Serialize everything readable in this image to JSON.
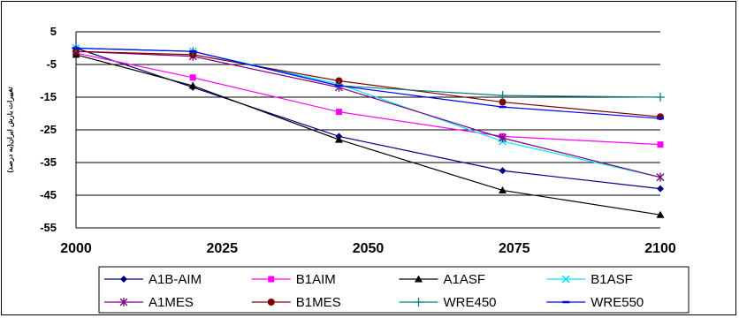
{
  "chart_data": {
    "type": "line",
    "title": "",
    "xlabel": "",
    "ylabel": "تغییرات بارش ایران(به درصد)",
    "x": [
      2000,
      2020,
      2045,
      2073,
      2100
    ],
    "xticks": [
      "2000",
      "2025",
      "2050",
      "2075",
      "2100"
    ],
    "yticks": [
      "5",
      "-5",
      "-15",
      "-25",
      "-35",
      "-45",
      "-55"
    ],
    "ylim": [
      -55,
      5
    ],
    "grid": "horizontal",
    "legend_position": "bottom",
    "series": [
      {
        "name": "A1B-AIM",
        "color": "#000080",
        "marker": "diamond",
        "values": [
          0,
          -12,
          -27,
          -37.5,
          -43
        ]
      },
      {
        "name": "B1AIM",
        "color": "#ff00ff",
        "marker": "square",
        "values": [
          -1.5,
          -9,
          -19.5,
          -27,
          -29.5
        ]
      },
      {
        "name": "A1ASF",
        "color": "#000000",
        "marker": "triangle",
        "values": [
          -2,
          -11.5,
          -28,
          -43.5,
          -51
        ]
      },
      {
        "name": "B1ASF",
        "color": "#00e5ff",
        "marker": "x",
        "values": [
          0,
          -1,
          -11,
          -28.5,
          -39.5
        ]
      },
      {
        "name": "A1MES",
        "color": "#800080",
        "marker": "star",
        "values": [
          -1,
          -2.5,
          -12,
          -27.5,
          -39.5
        ]
      },
      {
        "name": "B1MES",
        "color": "#800000",
        "marker": "circle",
        "values": [
          -1,
          -2,
          -10,
          -16.5,
          -21
        ]
      },
      {
        "name": "WRE450",
        "color": "#008080",
        "marker": "plus",
        "values": [
          0,
          -1,
          -11.5,
          -14.5,
          -15
        ]
      },
      {
        "name": "WRE550",
        "color": "#0000ff",
        "marker": "dash",
        "values": [
          0,
          -1,
          -11.5,
          -18,
          -21.5
        ]
      }
    ]
  }
}
